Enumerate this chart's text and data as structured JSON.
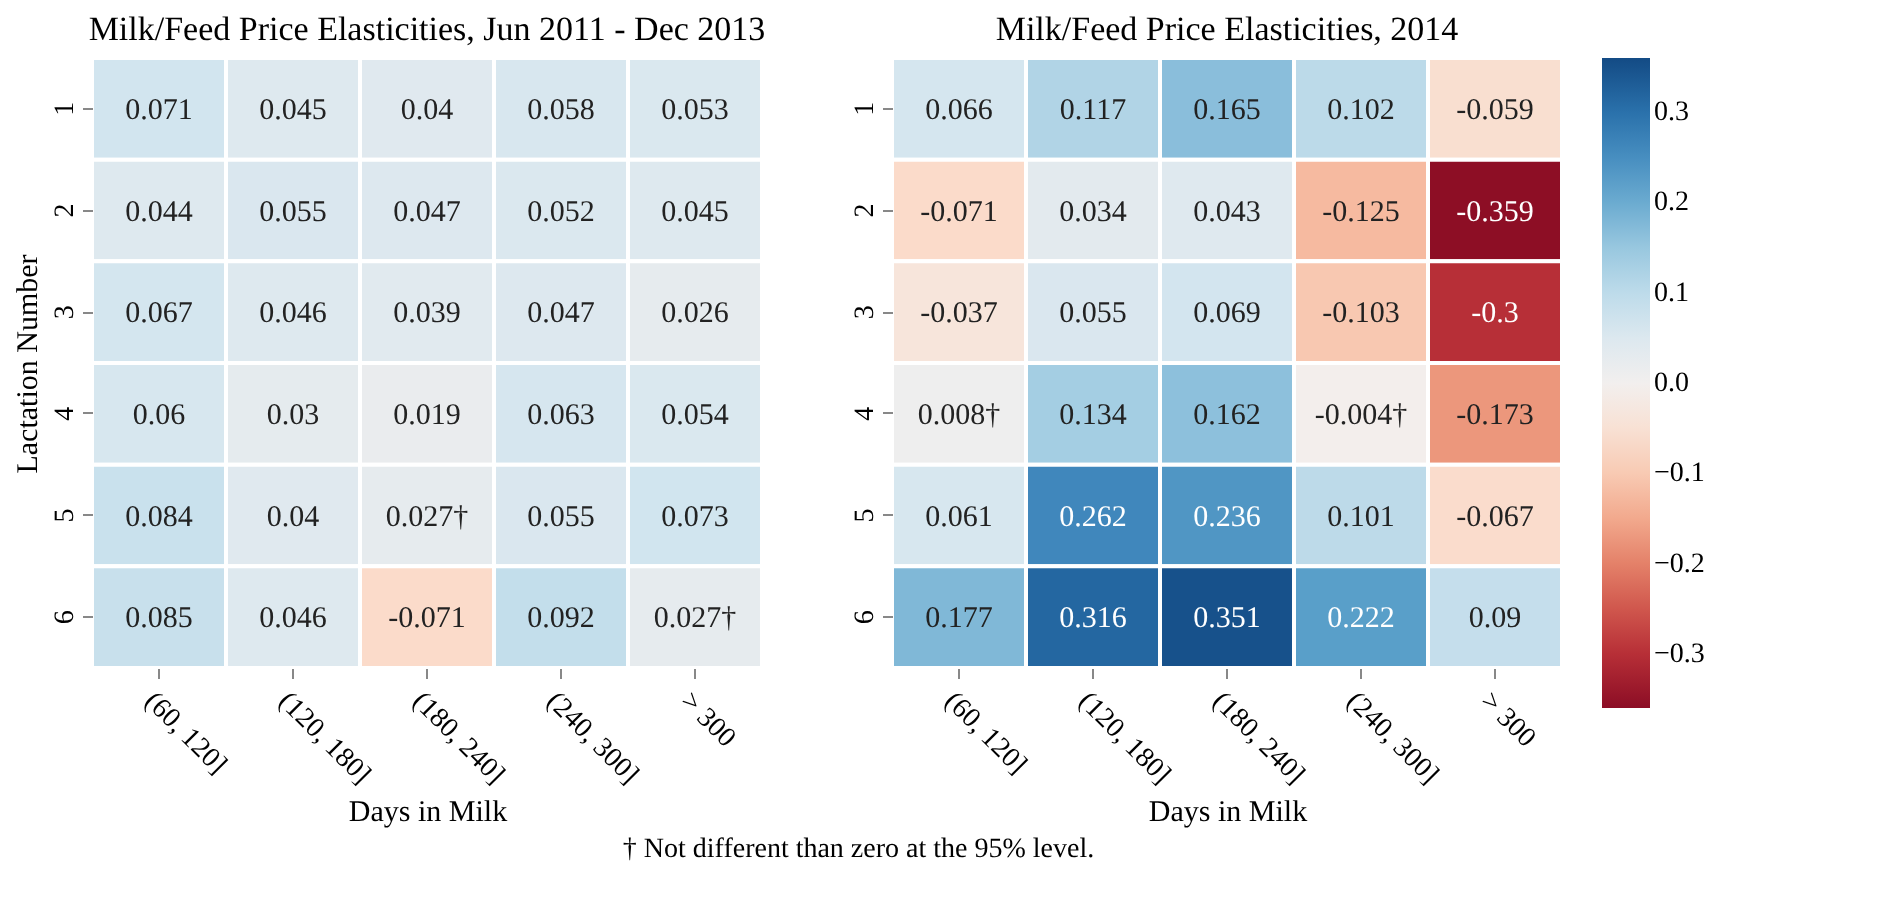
{
  "chart_data": [
    {
      "type": "heatmap",
      "title": "Milk/Feed Price Elasticities, Jun 2011 - Dec 2013",
      "xlabel": "Days in Milk",
      "ylabel": "Lactation Number",
      "categories": [
        "(60, 120]",
        "(120, 180]",
        "(180, 240]",
        "(240, 300]",
        "> 300"
      ],
      "y_categories": [
        "1",
        "2",
        "3",
        "4",
        "5",
        "6"
      ],
      "cells": [
        [
          0.071,
          0.045,
          0.04,
          0.058,
          0.053
        ],
        [
          0.044,
          0.055,
          0.047,
          0.052,
          0.045
        ],
        [
          0.067,
          0.046,
          0.039,
          0.047,
          0.026
        ],
        [
          0.06,
          0.03,
          0.019,
          0.063,
          0.054
        ],
        [
          0.084,
          0.04,
          0.027,
          0.055,
          0.073
        ],
        [
          0.085,
          0.046,
          -0.071,
          0.092,
          0.027
        ]
      ],
      "cell_labels": [
        [
          "0.071",
          "0.045",
          "0.04",
          "0.058",
          "0.053"
        ],
        [
          "0.044",
          "0.055",
          "0.047",
          "0.052",
          "0.045"
        ],
        [
          "0.067",
          "0.046",
          "0.039",
          "0.047",
          "0.026"
        ],
        [
          "0.06",
          "0.03",
          "0.019",
          "0.063",
          "0.054"
        ],
        [
          "0.084",
          "0.04",
          "0.027†",
          "0.055",
          "0.073"
        ],
        [
          "0.085",
          "0.046",
          "-0.071",
          "0.092",
          "0.027†"
        ]
      ],
      "annotations": [
        "† Not different than zero at the 95% level."
      ]
    },
    {
      "type": "heatmap",
      "title": "Milk/Feed Price Elasticities, 2014",
      "xlabel": "Days in Milk",
      "categories": [
        "(60, 120]",
        "(120, 180]",
        "(180, 240]",
        "(240, 300]",
        "> 300"
      ],
      "y_categories": [
        "1",
        "2",
        "3",
        "4",
        "5",
        "6"
      ],
      "cells": [
        [
          0.066,
          0.117,
          0.165,
          0.102,
          -0.059
        ],
        [
          -0.071,
          0.034,
          0.043,
          -0.125,
          -0.359
        ],
        [
          -0.037,
          0.055,
          0.069,
          -0.103,
          -0.3
        ],
        [
          0.008,
          0.134,
          0.162,
          -0.004,
          -0.173
        ],
        [
          0.061,
          0.262,
          0.236,
          0.101,
          -0.067
        ],
        [
          0.177,
          0.316,
          0.351,
          0.222,
          0.09
        ]
      ],
      "cell_labels": [
        [
          "0.066",
          "0.117",
          "0.165",
          "0.102",
          "-0.059"
        ],
        [
          "-0.071",
          "0.034",
          "0.043",
          "-0.125",
          "-0.359"
        ],
        [
          "-0.037",
          "0.055",
          "0.069",
          "-0.103",
          "-0.3"
        ],
        [
          "0.008†",
          "0.134",
          "0.162",
          "-0.004†",
          "-0.173"
        ],
        [
          "0.061",
          "0.262",
          "0.236",
          "0.101",
          "-0.067"
        ],
        [
          "0.177",
          "0.316",
          "0.351",
          "0.222",
          "0.09"
        ]
      ],
      "clim": [
        -0.36,
        0.36
      ],
      "cticks": [
        -0.3,
        -0.2,
        -0.1,
        {
          "value": 0,
          "label": "0.0"
        },
        0.1,
        0.2,
        0.3
      ]
    }
  ]
}
